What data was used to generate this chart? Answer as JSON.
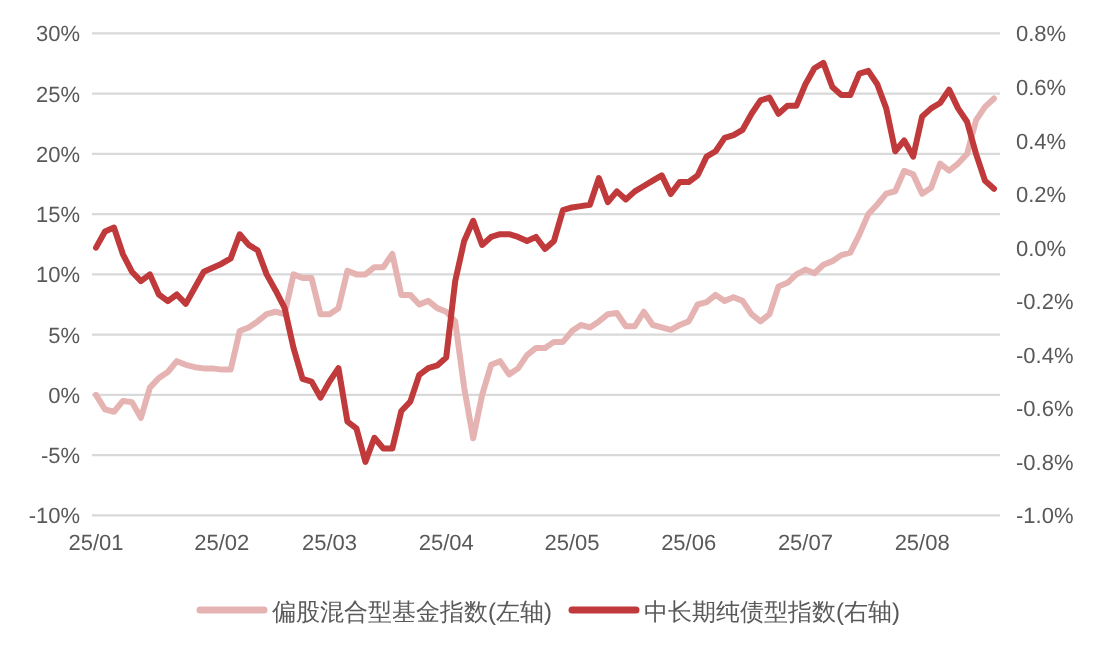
{
  "chart_data": {
    "type": "line",
    "categories": [
      "25/01",
      null,
      null,
      null,
      null,
      null,
      null,
      null,
      null,
      null,
      null,
      null,
      null,
      null,
      "25/02",
      null,
      null,
      null,
      null,
      null,
      null,
      null,
      null,
      null,
      null,
      null,
      "25/03",
      null,
      null,
      null,
      null,
      null,
      null,
      null,
      null,
      null,
      null,
      null,
      null,
      "25/04",
      null,
      null,
      null,
      null,
      null,
      null,
      null,
      null,
      null,
      null,
      null,
      null,
      null,
      "25/05",
      null,
      null,
      null,
      null,
      null,
      null,
      null,
      null,
      null,
      null,
      null,
      null,
      "25/06",
      null,
      null,
      null,
      null,
      null,
      null,
      null,
      null,
      null,
      null,
      null,
      null,
      "25/07",
      null,
      null,
      null,
      null,
      null,
      null,
      null,
      null,
      null,
      null,
      null,
      null,
      "25/08",
      null,
      null,
      null,
      null,
      null,
      null,
      null,
      null
    ],
    "series": [
      {
        "name": "偏股混合型基金指数(左轴)",
        "color": "#e6b3b3",
        "values": [
          0,
          -1.2,
          -1.4,
          -0.5,
          -0.6,
          -1.9,
          0.6,
          1.4,
          1.9,
          2.8,
          2.5,
          2.3,
          2.2,
          2.2,
          2.1,
          2.1,
          5.3,
          5.6,
          6.1,
          6.7,
          6.9,
          6.7,
          10,
          9.7,
          9.7,
          6.7,
          6.7,
          7.2,
          10.3,
          10,
          10,
          10.6,
          10.6,
          11.7,
          8.3,
          8.3,
          7.5,
          7.8,
          7.2,
          6.9,
          6.1,
          0.6,
          -3.6,
          0,
          2.5,
          2.8,
          1.7,
          2.2,
          3.3,
          3.9,
          3.9,
          4.4,
          4.4,
          5.3,
          5.8,
          5.6,
          6.1,
          6.7,
          6.8,
          5.7,
          5.7,
          6.9,
          5.8,
          5.6,
          5.4,
          5.8,
          6.1,
          7.5,
          7.7,
          8.3,
          7.8,
          8.1,
          7.8,
          6.7,
          6.1,
          6.7,
          9,
          9.3,
          10,
          10.4,
          10.1,
          10.8,
          11.1,
          11.6,
          11.8,
          13.3,
          15,
          15.8,
          16.7,
          16.9,
          18.6,
          18.3,
          16.7,
          17.2,
          19.2,
          18.6,
          19.2,
          20,
          22.8,
          23.9,
          24.6
        ]
      },
      {
        "name": "中长期纯债型指数(右轴)",
        "color": "#c0393b",
        "axis": "y2",
        "values": [
          0.0,
          0.06,
          0.075,
          -0.025,
          -0.09,
          -0.125,
          -0.1,
          -0.175,
          -0.2,
          -0.175,
          -0.21,
          -0.15,
          -0.09,
          -0.075,
          -0.06,
          -0.04,
          0.05,
          0.01,
          -0.01,
          -0.1,
          -0.16,
          -0.225,
          -0.375,
          -0.49,
          -0.5,
          -0.56,
          -0.5,
          -0.45,
          -0.65,
          -0.675,
          -0.8,
          -0.71,
          -0.75,
          -0.75,
          -0.61,
          -0.575,
          -0.475,
          -0.45,
          -0.44,
          -0.41,
          -0.125,
          0.025,
          0.1,
          0.01,
          0.04,
          0.05,
          0.05,
          0.04,
          0.025,
          0.04,
          -0.005,
          0.025,
          0.14,
          0.15,
          0.155,
          0.16,
          0.26,
          0.17,
          0.21,
          0.18,
          0.21,
          0.23,
          0.25,
          0.27,
          0.2,
          0.245,
          0.245,
          0.27,
          0.34,
          0.36,
          0.41,
          0.42,
          0.44,
          0.5,
          0.55,
          0.56,
          0.5,
          0.53,
          0.53,
          0.61,
          0.67,
          0.69,
          0.6,
          0.57,
          0.57,
          0.65,
          0.66,
          0.61,
          0.52,
          0.36,
          0.4,
          0.34,
          0.49,
          0.52,
          0.54,
          0.59,
          0.52,
          0.47,
          0.35,
          0.25,
          0.22
        ]
      }
    ],
    "ylim": [
      -10,
      30
    ],
    "yticks": [
      {
        "value": -10,
        "label": "-10%"
      },
      {
        "value": -5,
        "label": "-5%"
      },
      {
        "value": 0,
        "label": "0%"
      },
      {
        "value": 5,
        "label": "5%"
      },
      {
        "value": 10,
        "label": "10%"
      },
      {
        "value": 15,
        "label": "15%"
      },
      {
        "value": 20,
        "label": "20%"
      },
      {
        "value": 25,
        "label": "25%"
      },
      {
        "value": 30,
        "label": "30%"
      }
    ],
    "y2lim": [
      -1.0,
      0.8
    ],
    "y2ticks": [
      {
        "value": -1.0,
        "label": "-1.0%"
      },
      {
        "value": -0.8,
        "label": "-0.8%"
      },
      {
        "value": -0.6,
        "label": "-0.6%"
      },
      {
        "value": -0.4,
        "label": "-0.4%"
      },
      {
        "value": -0.2,
        "label": "-0.2%"
      },
      {
        "value": 0,
        "label": "0.0%"
      },
      {
        "value": 0.2,
        "label": "0.2%"
      },
      {
        "value": 0.4,
        "label": "0.4%"
      },
      {
        "value": 0.6,
        "label": "0.6%"
      },
      {
        "value": 0.8,
        "label": "0.8%"
      }
    ],
    "grid": "y",
    "legend": "bottom"
  }
}
